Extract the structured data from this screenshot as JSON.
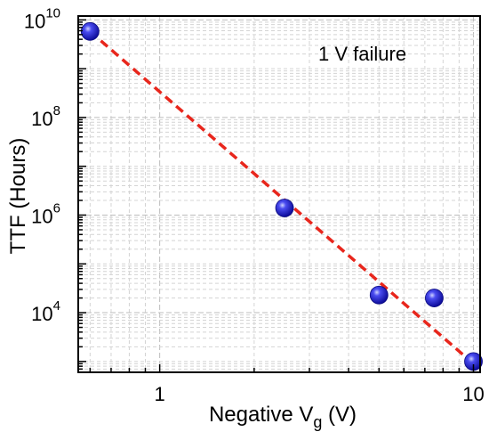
{
  "chart_data": {
    "type": "scatter",
    "xlabel": {
      "main": "Negative V",
      "sub": "g",
      "unit": " (V)"
    },
    "ylabel": "TTF (Hours)",
    "x_scale": "log",
    "y_scale": "log",
    "xlim": [
      0.55,
      10.5
    ],
    "ylim": [
      600,
      12000000000
    ],
    "x_ticks": [
      {
        "value": 1,
        "label": "1"
      },
      {
        "value": 10,
        "label": "10"
      }
    ],
    "y_ticks": [
      {
        "value": 10000,
        "base": "10",
        "exp": "4"
      },
      {
        "value": 1000000,
        "base": "10",
        "exp": "6"
      },
      {
        "value": 100000000,
        "base": "10",
        "exp": "8"
      },
      {
        "value": 10000000000,
        "base": "10",
        "exp": "10"
      }
    ],
    "grid": true,
    "annotation": "1 V failure",
    "series": [
      {
        "values": [
          {
            "x": 0.6,
            "y": 5800000000
          },
          {
            "x": 2.5,
            "y": 1400000
          },
          {
            "x": 5.0,
            "y": 23000
          },
          {
            "x": 7.5,
            "y": 20000
          },
          {
            "x": 10.0,
            "y": 1000
          }
        ],
        "color": "#1f1fd0"
      }
    ],
    "fit_line": {
      "from": {
        "x": 0.6,
        "y": 5800000000
      },
      "to": {
        "x": 10.0,
        "y": 900
      },
      "color": "#e8261c",
      "style": "dashed"
    }
  }
}
